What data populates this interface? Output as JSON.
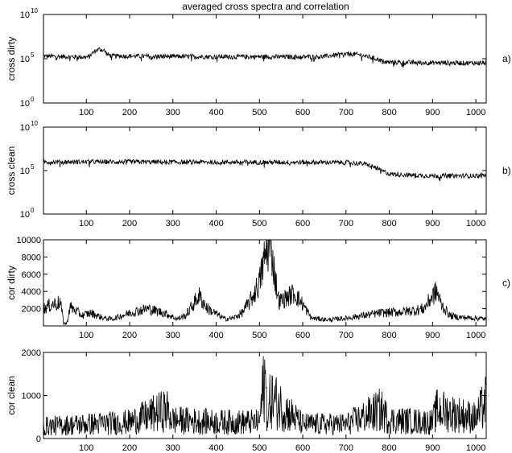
{
  "figure": {
    "title": "averaged cross spectra and correlation"
  },
  "chart_data": [
    {
      "id": "cross-dirty",
      "type": "line",
      "ylabel": "cross dirty",
      "panel_label": "a)",
      "xlim": [
        1,
        1024
      ],
      "ylim": [
        1,
        10000000000
      ],
      "yscale": "log",
      "xticks": [
        100,
        200,
        300,
        400,
        500,
        600,
        700,
        800,
        900,
        1000
      ],
      "yticks": [
        {
          "value": 1,
          "base": "10",
          "exp": "0"
        },
        {
          "value": 100000,
          "base": "10",
          "exp": "5"
        },
        {
          "value": 10000000000,
          "base": "10",
          "exp": "10"
        }
      ],
      "grid": false,
      "series": [
        {
          "color": "#000000",
          "x": [
            1,
            50,
            100,
            108,
            118,
            130,
            140,
            148,
            160,
            200,
            300,
            400,
            500,
            600,
            650,
            690,
            710,
            730,
            760,
            785,
            800,
            900,
            1000,
            1024
          ],
          "y": [
            200000,
            170000,
            150000,
            170000,
            600000,
            1200000,
            900000,
            300000,
            200000,
            200000,
            180000,
            170000,
            170000,
            160000,
            180000,
            300000,
            350000,
            280000,
            130000,
            50000,
            40000,
            35000,
            33000,
            35000
          ]
        }
      ]
    },
    {
      "id": "cross-clean",
      "type": "line",
      "ylabel": "cross clean",
      "panel_label": "b)",
      "xlim": [
        1,
        1024
      ],
      "ylim": [
        1,
        10000000000
      ],
      "yscale": "log",
      "xticks": [
        100,
        200,
        300,
        400,
        500,
        600,
        700,
        800,
        900,
        1000
      ],
      "yticks": [
        {
          "value": 1,
          "base": "10",
          "exp": "0"
        },
        {
          "value": 100000,
          "base": "10",
          "exp": "5"
        },
        {
          "value": 10000000000,
          "base": "10",
          "exp": "10"
        }
      ],
      "grid": false,
      "series": [
        {
          "color": "#000000",
          "x": [
            1,
            100,
            200,
            300,
            400,
            500,
            600,
            700,
            740,
            760,
            780,
            800,
            850,
            900,
            1000,
            1024
          ],
          "y": [
            1000000,
            1000000,
            1000000,
            950000,
            950000,
            900000,
            900000,
            850000,
            600000,
            300000,
            100000,
            40000,
            30000,
            25000,
            25000,
            30000
          ]
        }
      ]
    },
    {
      "id": "cor-dirty",
      "type": "line",
      "ylabel": "cor dirty",
      "panel_label": "c)",
      "xlim": [
        1,
        1024
      ],
      "ylim": [
        0,
        10000
      ],
      "yscale": "linear",
      "xticks": [
        100,
        200,
        300,
        400,
        500,
        600,
        700,
        800,
        900,
        1000
      ],
      "yticks": [
        {
          "value": 2000,
          "label": "2000"
        },
        {
          "value": 4000,
          "label": "4000"
        },
        {
          "value": 6000,
          "label": "6000"
        },
        {
          "value": 8000,
          "label": "8000"
        },
        {
          "value": 10000,
          "label": "10000"
        }
      ],
      "grid": false,
      "series": [
        {
          "color": "#000000",
          "x": [
            1,
            20,
            40,
            48,
            55,
            62,
            75,
            90,
            110,
            140,
            160,
            200,
            240,
            280,
            310,
            330,
            360,
            380,
            420,
            440,
            460,
            480,
            500,
            510,
            520,
            528,
            535,
            545,
            560,
            580,
            600,
            620,
            640,
            660,
            700,
            740,
            780,
            820,
            860,
            880,
            900,
            910,
            920,
            940,
            960,
            1000,
            1024
          ],
          "y": [
            2000,
            2500,
            2700,
            300,
            250,
            2200,
            1800,
            1200,
            1500,
            900,
            800,
            1500,
            2000,
            1500,
            800,
            1200,
            3500,
            2000,
            800,
            900,
            1500,
            3000,
            5000,
            7500,
            9200,
            9000,
            6000,
            2800,
            3200,
            3800,
            2500,
            900,
            800,
            700,
            900,
            1200,
            1500,
            1600,
            1800,
            2000,
            3500,
            4000,
            2500,
            1200,
            1000,
            900,
            800
          ]
        }
      ]
    },
    {
      "id": "cor-clean",
      "type": "line",
      "ylabel": "cor clean",
      "panel_label": "",
      "xlim": [
        1,
        1024
      ],
      "ylim": [
        0,
        2000
      ],
      "yscale": "linear",
      "xticks": [
        100,
        200,
        300,
        400,
        500,
        600,
        700,
        800,
        900,
        1000
      ],
      "yticks": [
        {
          "value": 0,
          "label": "0"
        },
        {
          "value": 1000,
          "label": "1000"
        },
        {
          "value": 2000,
          "label": "2000"
        }
      ],
      "grid": false,
      "series": [
        {
          "color": "#000000",
          "x": [
            1,
            100,
            200,
            285,
            300,
            400,
            500,
            512,
            520,
            525,
            600,
            700,
            780,
            800,
            900,
            910,
            1000,
            1024
          ],
          "y": [
            300,
            350,
            400,
            700,
            450,
            400,
            400,
            1500,
            400,
            1000,
            350,
            350,
            700,
            450,
            400,
            700,
            500,
            900
          ]
        }
      ]
    }
  ]
}
